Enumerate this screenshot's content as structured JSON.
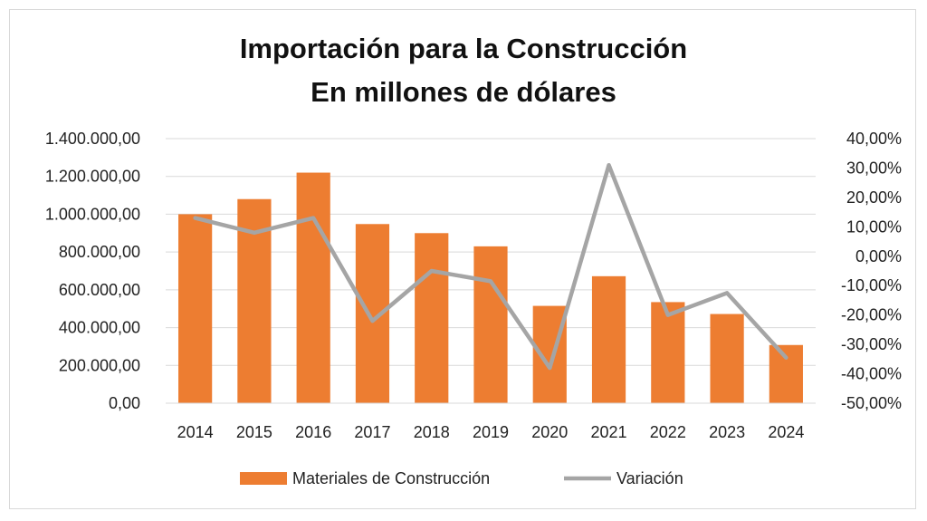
{
  "chart_data": {
    "type": "bar",
    "title_lines": [
      "Importación para la Construcción",
      "En millones de dólares"
    ],
    "categories": [
      "2014",
      "2015",
      "2016",
      "2017",
      "2018",
      "2019",
      "2020",
      "2021",
      "2022",
      "2023",
      "2024"
    ],
    "series": [
      {
        "name": "Materiales de Construcción",
        "type": "bar",
        "axis": "left",
        "color": "#ED7D31",
        "values": [
          1000000,
          1080000,
          1220000,
          948000,
          900000,
          830000,
          515000,
          672000,
          535000,
          472000,
          308000
        ]
      },
      {
        "name": "Variación",
        "type": "line",
        "axis": "right",
        "color": "#A5A5A5",
        "values": [
          13.0,
          8.0,
          13.0,
          -22.0,
          -5.0,
          -8.5,
          -38.0,
          31.0,
          -20.0,
          -12.5,
          -34.5
        ]
      }
    ],
    "y_left": {
      "min": 0,
      "max": 1400000,
      "tick_labels": [
        "0,00",
        "200.000,00",
        "400.000,00",
        "600.000,00",
        "800.000,00",
        "1.000.000,00",
        "1.200.000,00",
        "1.400.000,00"
      ]
    },
    "y_right": {
      "min": -50,
      "max": 40,
      "tick_labels": [
        "-50,00%",
        "-40,00%",
        "-30,00%",
        "-20,00%",
        "-10,00%",
        "0,00%",
        "10,00%",
        "20,00%",
        "30,00%",
        "40,00%"
      ]
    },
    "grid": true,
    "legend_position": "bottom"
  }
}
